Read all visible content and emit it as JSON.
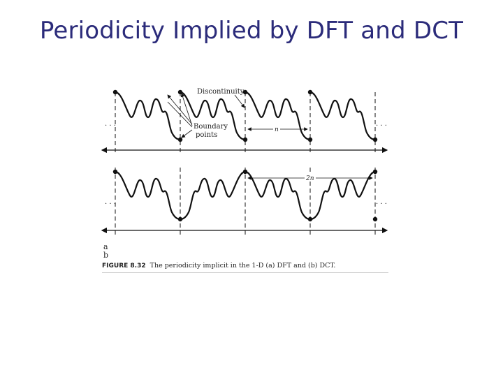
{
  "slide": {
    "title": "Periodicity Implied by DFT and DCT"
  },
  "figure": {
    "annotations": {
      "discontinuity": "Discontinuity",
      "boundary_points": "Boundary points",
      "period_a": "n",
      "period_b": "2n",
      "dots": ". . ."
    },
    "panel_labels": [
      "a",
      "b"
    ],
    "caption_id": "FIGURE 8.32",
    "caption_text": "The periodicity implicit in the 1-D (a) DFT and (b) DCT."
  }
}
